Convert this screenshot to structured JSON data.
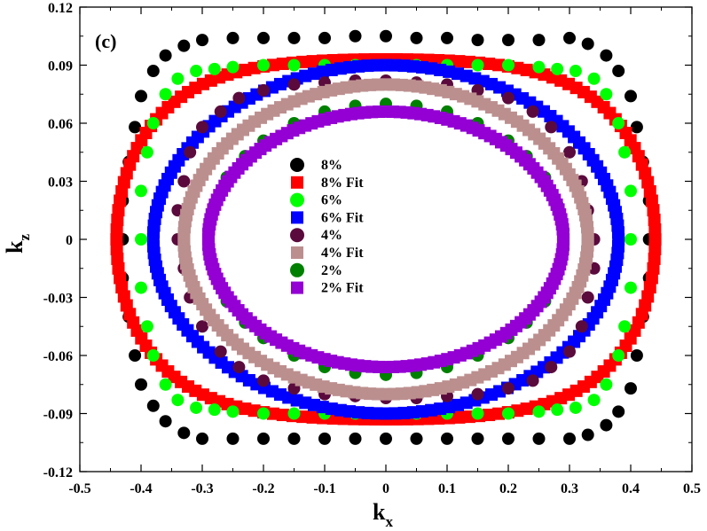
{
  "chart_data": {
    "type": "scatter",
    "panel_label": "(c)",
    "xlabel_main": "k",
    "xlabel_sub": "x",
    "ylabel_main": "k",
    "ylabel_sub": "z",
    "xlim": [
      -0.5,
      0.5
    ],
    "ylim": [
      -0.12,
      0.12
    ],
    "x_ticks": [
      -0.5,
      -0.4,
      -0.3,
      -0.2,
      -0.1,
      0,
      0.1,
      0.2,
      0.3,
      0.4,
      0.5
    ],
    "x_tick_labels": [
      "-0.5",
      "-0.4",
      "-0.3",
      "-0.2",
      "-0.1",
      "0",
      "0.1",
      "0.2",
      "0.3",
      "0.4",
      "0.5"
    ],
    "y_ticks": [
      -0.12,
      -0.09,
      -0.06,
      -0.03,
      0,
      0.03,
      0.06,
      0.09,
      0.12
    ],
    "y_tick_labels": [
      "-0.12",
      "-0.09",
      "-0.06",
      "-0.03",
      "0",
      "0.03",
      "0.06",
      "0.09",
      "0.12"
    ],
    "grid": false,
    "legend_position": "center",
    "series": [
      {
        "name": "8%",
        "marker": "circle",
        "color": "#000000",
        "x": [
          0,
          0.05,
          0.1,
          0.15,
          0.2,
          0.25,
          0.3,
          0.33,
          0.36,
          0.38,
          0.4,
          0.41,
          0.42,
          0.43,
          0.43,
          0.43,
          0.42,
          0.41,
          0.4,
          0.38,
          0.36,
          0.33,
          0.3,
          0.25,
          0.2,
          0.15,
          0.1,
          0.05,
          0,
          -0.05,
          -0.1,
          -0.15,
          -0.2,
          -0.25,
          -0.3,
          -0.33,
          -0.36,
          -0.38,
          -0.4,
          -0.41,
          -0.42,
          -0.43,
          -0.43,
          -0.43,
          -0.42,
          -0.41,
          -0.4,
          -0.38,
          -0.36,
          -0.33,
          -0.3,
          -0.25,
          -0.2,
          -0.15,
          -0.1,
          -0.05
        ],
        "y": [
          0.105,
          0.104,
          0.104,
          0.103,
          0.103,
          0.103,
          0.104,
          0.101,
          0.095,
          0.087,
          0.074,
          0.058,
          0.04,
          0.02,
          0,
          -0.02,
          -0.04,
          -0.06,
          -0.077,
          -0.089,
          -0.096,
          -0.101,
          -0.103,
          -0.103,
          -0.103,
          -0.103,
          -0.103,
          -0.103,
          -0.103,
          -0.103,
          -0.103,
          -0.103,
          -0.103,
          -0.103,
          -0.103,
          -0.1,
          -0.094,
          -0.086,
          -0.075,
          -0.06,
          -0.04,
          -0.02,
          0,
          0.02,
          0.04,
          0.058,
          0.074,
          0.087,
          0.095,
          0.1,
          0.103,
          0.104,
          0.104,
          0.104,
          0.104,
          0.105
        ]
      },
      {
        "name": "8% Fit",
        "marker": "square",
        "color": "#ff0000",
        "curve": {
          "a": 0.44,
          "b": 0.093,
          "bump": 0.38
        }
      },
      {
        "name": "6%",
        "marker": "circle",
        "color": "#00ff00",
        "x": [
          0,
          0.05,
          0.1,
          0.15,
          0.2,
          0.25,
          0.28,
          0.31,
          0.34,
          0.36,
          0.38,
          0.39,
          0.4,
          0.4,
          0.4,
          0.39,
          0.38,
          0.36,
          0.34,
          0.31,
          0.28,
          0.25,
          0.2,
          0.15,
          0.1,
          0.05,
          0,
          -0.05,
          -0.1,
          -0.15,
          -0.2,
          -0.25,
          -0.28,
          -0.31,
          -0.34,
          -0.36,
          -0.38,
          -0.39,
          -0.4,
          -0.4,
          -0.4,
          -0.39,
          -0.38,
          -0.36,
          -0.34,
          -0.31,
          -0.28,
          -0.25,
          -0.2,
          -0.15,
          -0.1,
          -0.05
        ],
        "y": [
          0.09,
          0.09,
          0.09,
          0.09,
          0.09,
          0.089,
          0.088,
          0.087,
          0.083,
          0.075,
          0.06,
          0.045,
          0.025,
          0,
          -0.025,
          -0.045,
          -0.06,
          -0.075,
          -0.083,
          -0.087,
          -0.088,
          -0.089,
          -0.09,
          -0.09,
          -0.09,
          -0.09,
          -0.09,
          -0.09,
          -0.09,
          -0.09,
          -0.09,
          -0.089,
          -0.088,
          -0.087,
          -0.083,
          -0.075,
          -0.06,
          -0.045,
          -0.025,
          0,
          0.025,
          0.045,
          0.06,
          0.075,
          0.083,
          0.087,
          0.088,
          0.089,
          0.09,
          0.09,
          0.09,
          0.09
        ]
      },
      {
        "name": "6% Fit",
        "marker": "square",
        "color": "#0000ff",
        "curve": {
          "a": 0.38,
          "b": 0.09,
          "bump": 0
        }
      },
      {
        "name": "4%",
        "marker": "circle",
        "color": "#5a0a3c",
        "x": [
          0,
          0.05,
          0.1,
          0.15,
          0.2,
          0.24,
          0.27,
          0.3,
          0.32,
          0.33,
          0.34,
          0.34,
          0.33,
          0.32,
          0.3,
          0.27,
          0.24,
          0.2,
          0.15,
          0.1,
          0.05,
          0,
          -0.05,
          -0.1,
          -0.15,
          -0.2,
          -0.24,
          -0.27,
          -0.3,
          -0.32,
          -0.33,
          -0.34,
          -0.34,
          -0.33,
          -0.32,
          -0.3,
          -0.27,
          -0.24,
          -0.2,
          -0.15,
          -0.1,
          -0.05
        ],
        "y": [
          0.082,
          0.081,
          0.08,
          0.077,
          0.073,
          0.066,
          0.058,
          0.045,
          0.03,
          0.015,
          0,
          -0.015,
          -0.03,
          -0.045,
          -0.058,
          -0.066,
          -0.073,
          -0.077,
          -0.08,
          -0.081,
          -0.082,
          -0.082,
          -0.081,
          -0.08,
          -0.077,
          -0.073,
          -0.066,
          -0.058,
          -0.045,
          -0.03,
          -0.015,
          0,
          0.015,
          0.03,
          0.045,
          0.058,
          0.066,
          0.073,
          0.077,
          0.08,
          0.081,
          0.082
        ]
      },
      {
        "name": "4% Fit",
        "marker": "square",
        "color": "#bc8f8f",
        "curve": {
          "a": 0.33,
          "b": 0.08,
          "bump": 0
        }
      },
      {
        "name": "2%",
        "marker": "circle",
        "color": "#008000",
        "x": [
          0,
          0.05,
          0.1,
          0.15,
          0.2,
          0.23,
          0.26,
          0.28,
          0.29,
          0.29,
          0.28,
          0.26,
          0.23,
          0.2,
          0.15,
          0.1,
          0.05,
          0,
          -0.05,
          -0.1,
          -0.15,
          -0.2,
          -0.23,
          -0.26,
          -0.28,
          -0.29,
          -0.29,
          -0.28,
          -0.26,
          -0.23,
          -0.2,
          -0.15,
          -0.1,
          -0.05
        ],
        "y": [
          0.07,
          0.069,
          0.066,
          0.06,
          0.051,
          0.043,
          0.032,
          0.018,
          0.005,
          -0.005,
          -0.018,
          -0.032,
          -0.043,
          -0.051,
          -0.06,
          -0.066,
          -0.069,
          -0.07,
          -0.069,
          -0.066,
          -0.06,
          -0.051,
          -0.043,
          -0.032,
          -0.018,
          -0.005,
          0.005,
          0.018,
          0.032,
          0.043,
          0.051,
          0.06,
          0.066,
          0.069
        ]
      },
      {
        "name": "2% Fit",
        "marker": "square",
        "color": "#9400d3",
        "curve": {
          "a": 0.29,
          "b": 0.066,
          "bump": 0
        }
      }
    ]
  }
}
